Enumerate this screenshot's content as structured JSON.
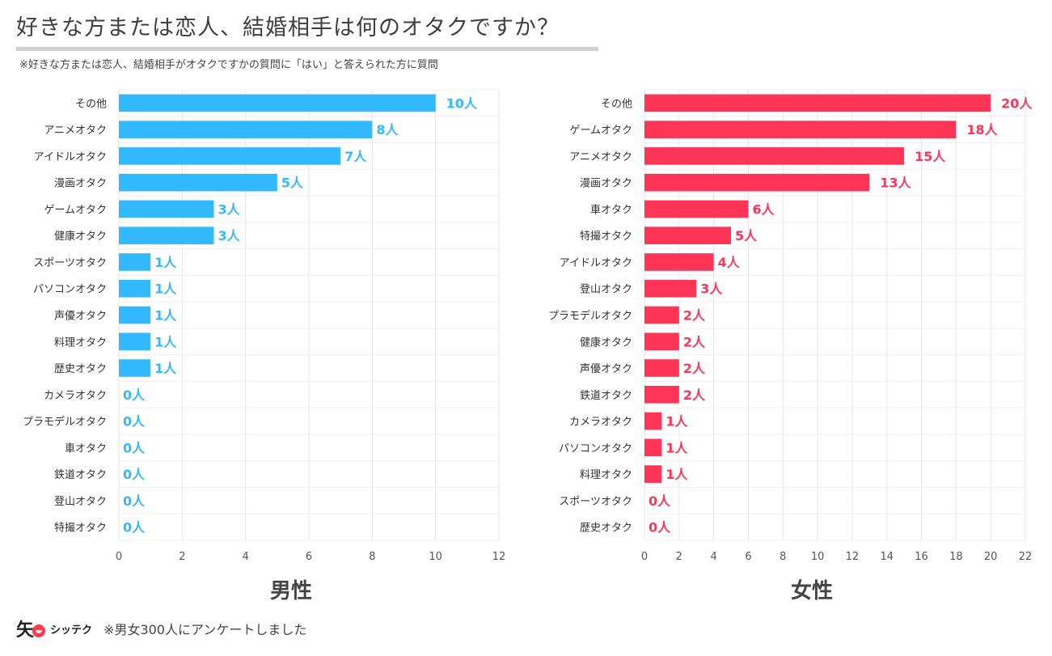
{
  "header": {
    "title": "好きな方または恋人、結婚相手は何のオタクですか？",
    "note": "※好きな方または恋人、結婚相手がオタクですかの質問に「はい」と答えられた方に質問"
  },
  "footer": {
    "brand": "シッテク",
    "note": "※男女300人にアンケートしました"
  },
  "chart_data": [
    {
      "type": "bar",
      "orientation": "horizontal",
      "xlabel": "男性",
      "color": "#33b9ff",
      "unit": "人",
      "xlim": [
        0,
        12
      ],
      "xticks": [
        0,
        2,
        4,
        6,
        8,
        10,
        12
      ],
      "grid": true,
      "categories": [
        "その他",
        "アニメオタク",
        "アイドルオタク",
        "漫画オタク",
        "ゲームオタク",
        "健康オタク",
        "スポーツオタク",
        "パソコンオタク",
        "声優オタク",
        "料理オタク",
        "歴史オタク",
        "カメラオタク",
        "プラモデルオタク",
        "車オタク",
        "鉄道オタク",
        "登山オタク",
        "特撮オタク"
      ],
      "values": [
        10,
        8,
        7,
        5,
        3,
        3,
        1,
        1,
        1,
        1,
        1,
        0,
        0,
        0,
        0,
        0,
        0
      ],
      "data_labels": [
        "10人",
        "8人",
        "7人",
        "5人",
        "3人",
        "3人",
        "1人",
        "1人",
        "1人",
        "1人",
        "1人",
        "0人",
        "0人",
        "0人",
        "0人",
        "0人",
        "0人"
      ]
    },
    {
      "type": "bar",
      "orientation": "horizontal",
      "xlabel": "女性",
      "color": "#ff3558",
      "unit": "人",
      "xlim": [
        0,
        22
      ],
      "xticks": [
        0,
        2,
        4,
        6,
        8,
        10,
        12,
        14,
        16,
        18,
        20,
        22
      ],
      "grid": true,
      "categories": [
        "その他",
        "ゲームオタク",
        "アニメオタク",
        "漫画オタク",
        "車オタク",
        "特撮オタク",
        "アイドルオタク",
        "登山オタク",
        "プラモデルオタク",
        "健康オタク",
        "声優オタク",
        "鉄道オタク",
        "カメラオタク",
        "パソコンオタク",
        "料理オタク",
        "スポーツオタク",
        "歴史オタク"
      ],
      "values": [
        20,
        18,
        15,
        13,
        6,
        5,
        4,
        3,
        2,
        2,
        2,
        2,
        1,
        1,
        1,
        0,
        0
      ],
      "data_labels": [
        "20人",
        "18人",
        "15人",
        "13人",
        "6人",
        "5人",
        "4人",
        "3人",
        "2人",
        "2人",
        "2人",
        "2人",
        "1人",
        "1人",
        "1人",
        "0人",
        "0人"
      ]
    }
  ]
}
